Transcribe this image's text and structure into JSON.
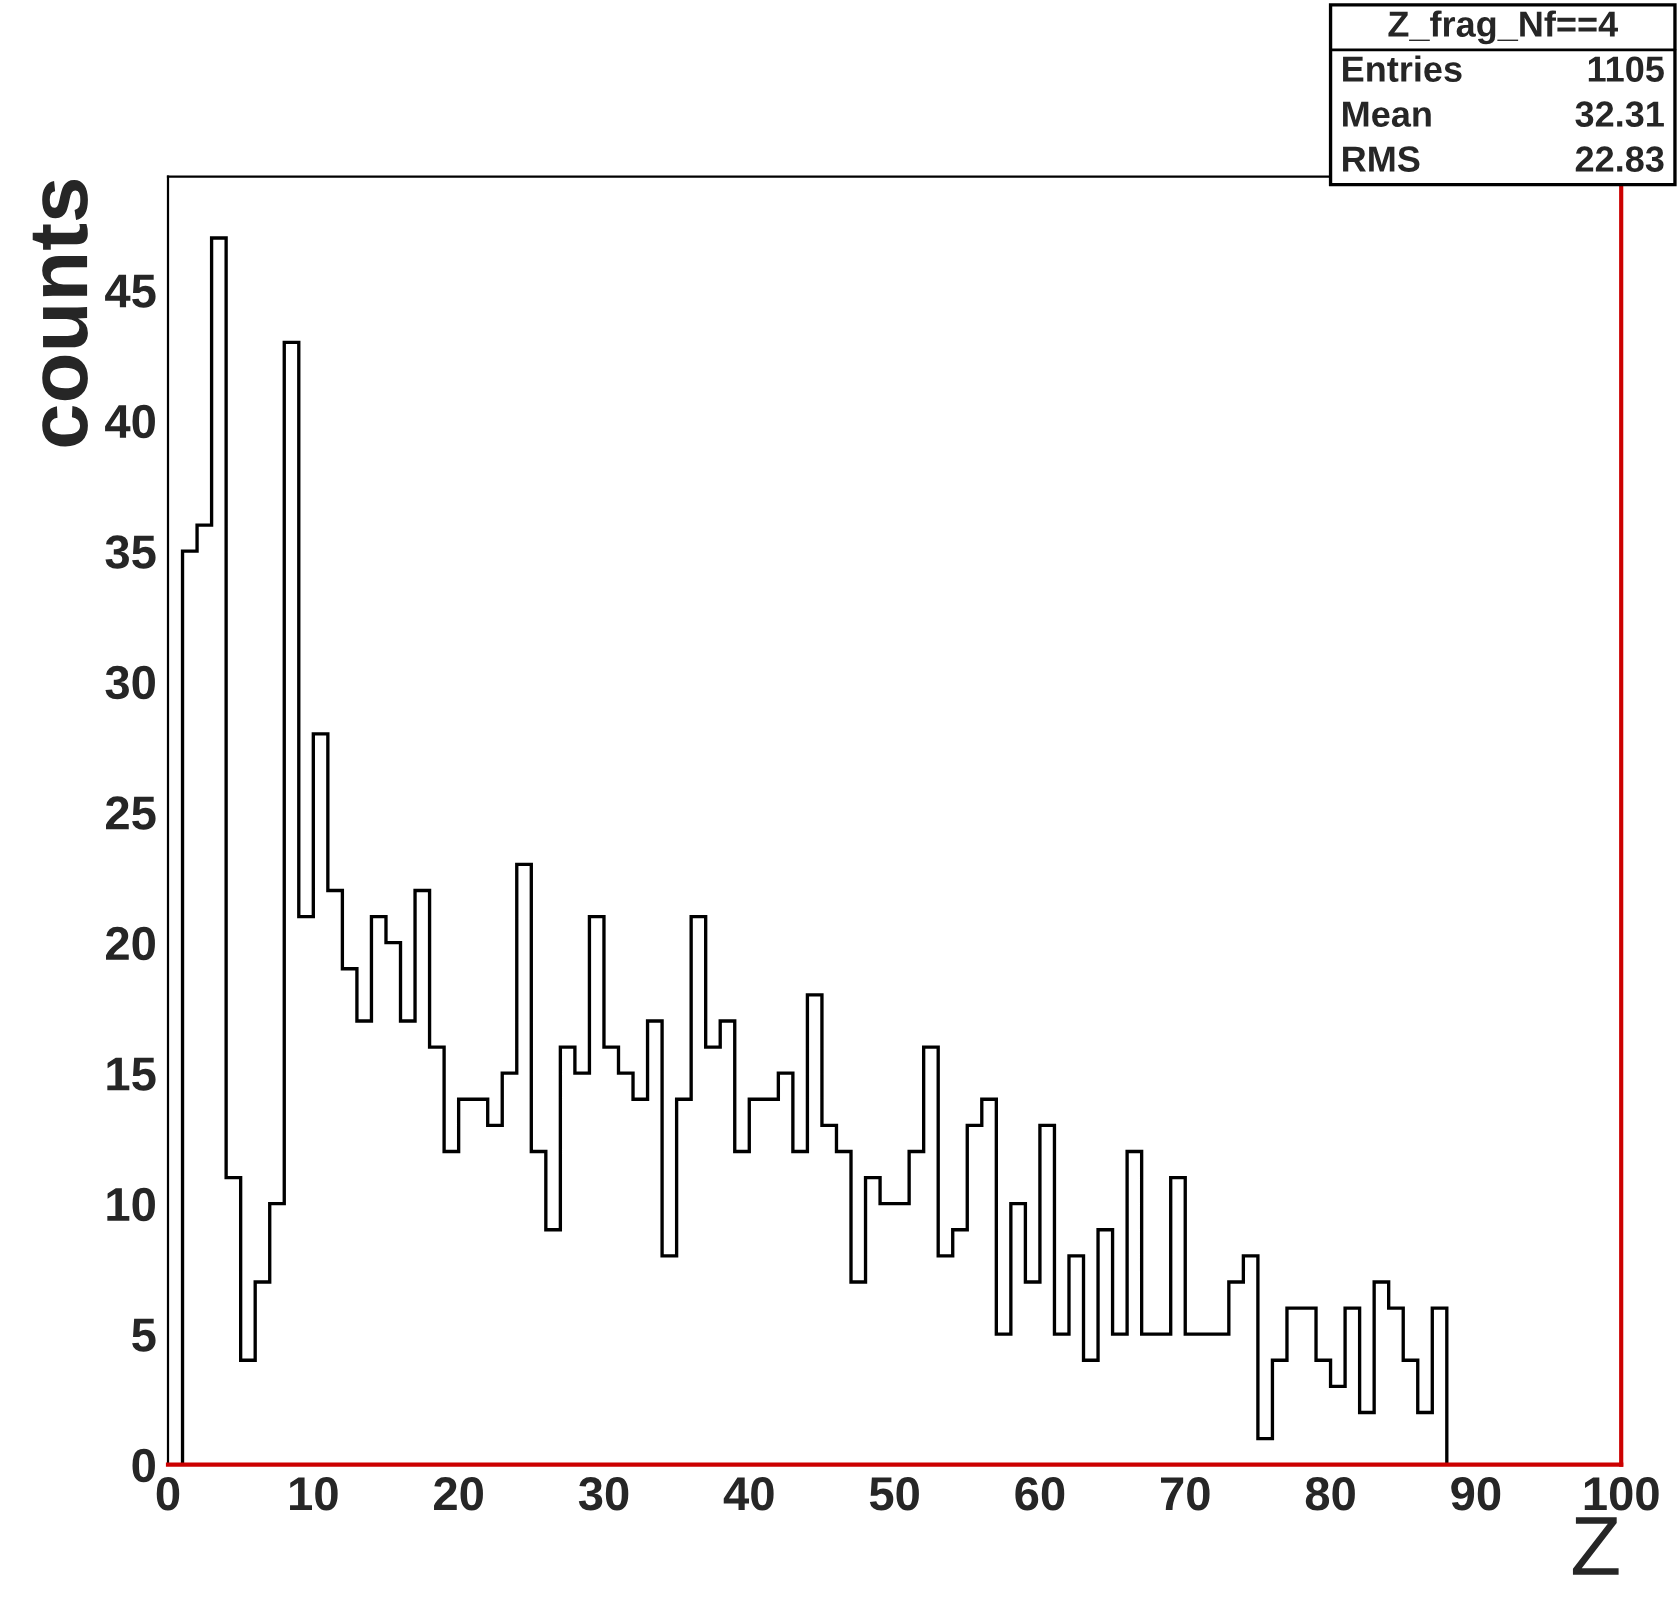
{
  "chart_data": {
    "type": "histogram",
    "xlabel": "Z",
    "ylabel": "counts",
    "bins": [
      0,
      1,
      2,
      3,
      4,
      5,
      6,
      7,
      8,
      9,
      10,
      11,
      12,
      13,
      14,
      15,
      16,
      17,
      18,
      19,
      20,
      21,
      22,
      23,
      24,
      25,
      26,
      27,
      28,
      29,
      30,
      31,
      32,
      33,
      34,
      35,
      36,
      37,
      38,
      39,
      40,
      41,
      42,
      43,
      44,
      45,
      46,
      47,
      48,
      49,
      50,
      51,
      52,
      53,
      54,
      55,
      56,
      57,
      58,
      59,
      60,
      61,
      62,
      63,
      64,
      65,
      66,
      67,
      68,
      69,
      70,
      71,
      72,
      73,
      74,
      75,
      76,
      77,
      78,
      79,
      80,
      81,
      82,
      83,
      84,
      85,
      86,
      87,
      88,
      89,
      90,
      91,
      92,
      93,
      94,
      95,
      96,
      97,
      98,
      99,
      100
    ],
    "values": [
      0,
      35,
      36,
      47,
      11,
      4,
      7,
      10,
      43,
      21,
      28,
      22,
      19,
      17,
      21,
      20,
      17,
      22,
      16,
      12,
      14,
      14,
      13,
      15,
      23,
      12,
      9,
      16,
      15,
      21,
      16,
      15,
      14,
      17,
      8,
      14,
      21,
      16,
      17,
      12,
      14,
      14,
      15,
      12,
      18,
      13,
      12,
      7,
      11,
      10,
      10,
      12,
      16,
      8,
      9,
      13,
      14,
      5,
      10,
      7,
      13,
      5,
      8,
      4,
      9,
      5,
      12,
      5,
      5,
      11,
      5,
      5,
      5,
      7,
      8,
      1,
      4,
      6,
      6,
      4,
      3,
      6,
      2,
      7,
      6,
      4,
      2,
      6,
      0,
      0,
      0,
      0,
      0,
      0,
      0,
      0,
      0,
      0,
      0,
      0
    ],
    "color": "#000000",
    "xlim": [
      0,
      100
    ],
    "xticks": [
      0,
      10,
      20,
      30,
      40,
      50,
      60,
      70,
      80,
      90,
      100
    ],
    "ylim": [
      0,
      49.35
    ],
    "yticks": [
      0,
      5,
      10,
      15,
      20,
      25,
      30,
      35,
      40,
      45
    ],
    "grid": false,
    "legend": false,
    "annotations": [
      "Z_frag_Nf==4",
      "Entries 1105",
      "Mean 32.31",
      "RMS 22.83"
    ]
  }
}
